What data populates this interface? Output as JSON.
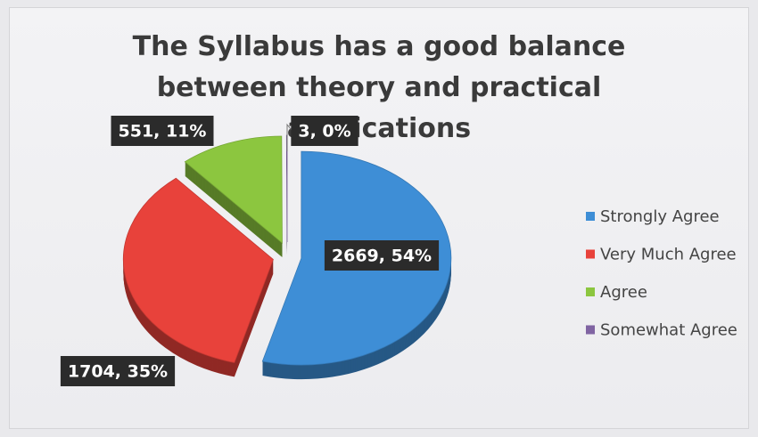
{
  "chart_data": {
    "type": "pie",
    "title": "The Syllabus has a good balance between theory and practical applications",
    "categories": [
      "Strongly Agree",
      "Very Much Agree",
      "Agree",
      "Somewhat Agree"
    ],
    "values": [
      2669,
      1704,
      551,
      3
    ],
    "value_labels": [
      "2669, 54%",
      "1704, 35%",
      "551, 11%",
      "3, 0%"
    ],
    "colors": [
      "#3e8ed6",
      "#e8423b",
      "#8cc63f",
      "#8064a2"
    ],
    "legend": "right"
  }
}
